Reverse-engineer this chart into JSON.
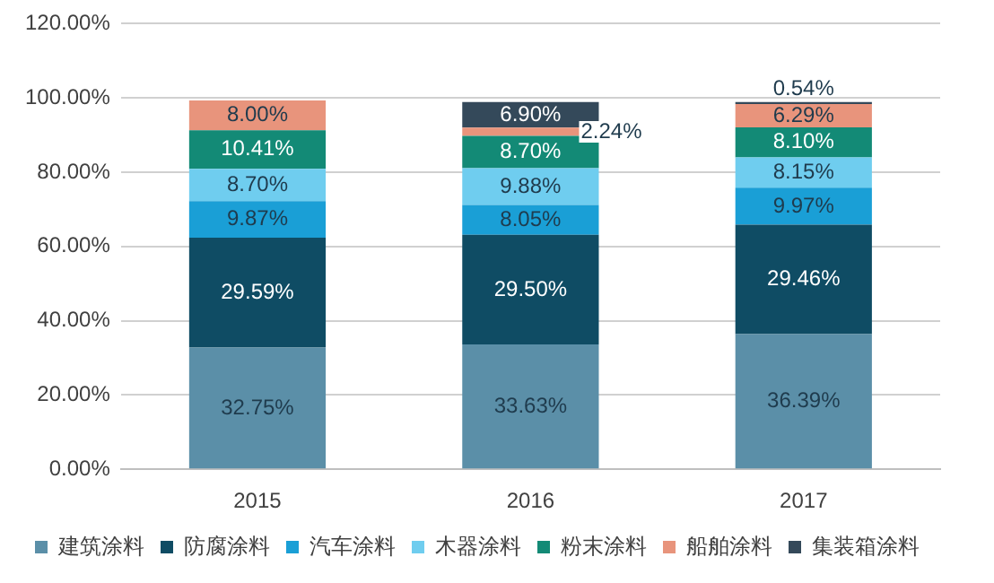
{
  "chart_data": {
    "type": "bar",
    "stacked": true,
    "categories": [
      "2015",
      "2016",
      "2017"
    ],
    "series": [
      {
        "name": "建筑涂料",
        "color": "#5b8fa8",
        "values": [
          32.75,
          33.63,
          36.39
        ],
        "value_labels": [
          "32.75%",
          "33.63%",
          "36.39%"
        ]
      },
      {
        "name": "防腐涂料",
        "color": "#0f4c64",
        "values": [
          29.59,
          29.5,
          29.46
        ],
        "value_labels": [
          "29.59%",
          "29.50%",
          "29.46%"
        ]
      },
      {
        "name": "汽车涂料",
        "color": "#1a9fd6",
        "values": [
          9.87,
          8.05,
          9.97
        ],
        "value_labels": [
          "9.87%",
          "8.05%",
          "9.97%"
        ]
      },
      {
        "name": "木器涂料",
        "color": "#6fcdef",
        "values": [
          8.7,
          9.88,
          8.15
        ],
        "value_labels": [
          "8.70%",
          "9.88%",
          "8.15%"
        ]
      },
      {
        "name": "粉末涂料",
        "color": "#138a76",
        "values": [
          10.41,
          8.7,
          8.1
        ],
        "value_labels": [
          "10.41%",
          "8.70%",
          "8.10%"
        ]
      },
      {
        "name": "船舶涂料",
        "color": "#e8947c",
        "values": [
          8.0,
          2.24,
          6.29
        ],
        "value_labels": [
          "8.00%",
          "2.24%",
          "6.29%"
        ]
      },
      {
        "name": "集装箱涂料",
        "color": "#34495a",
        "values": [
          null,
          6.9,
          0.54
        ],
        "value_labels": [
          null,
          "6.90%",
          "0.54%"
        ]
      }
    ],
    "ylim": [
      0,
      120
    ],
    "yticks": [
      {
        "value": 0,
        "label": "0.00%"
      },
      {
        "value": 20,
        "label": "20.00%"
      },
      {
        "value": 40,
        "label": "40.00%"
      },
      {
        "value": 60,
        "label": "60.00%"
      },
      {
        "value": 80,
        "label": "80.00%"
      },
      {
        "value": 100,
        "label": "100.00%"
      },
      {
        "value": 120,
        "label": "120.00%"
      }
    ],
    "grid": "y",
    "legend": "bottom"
  }
}
